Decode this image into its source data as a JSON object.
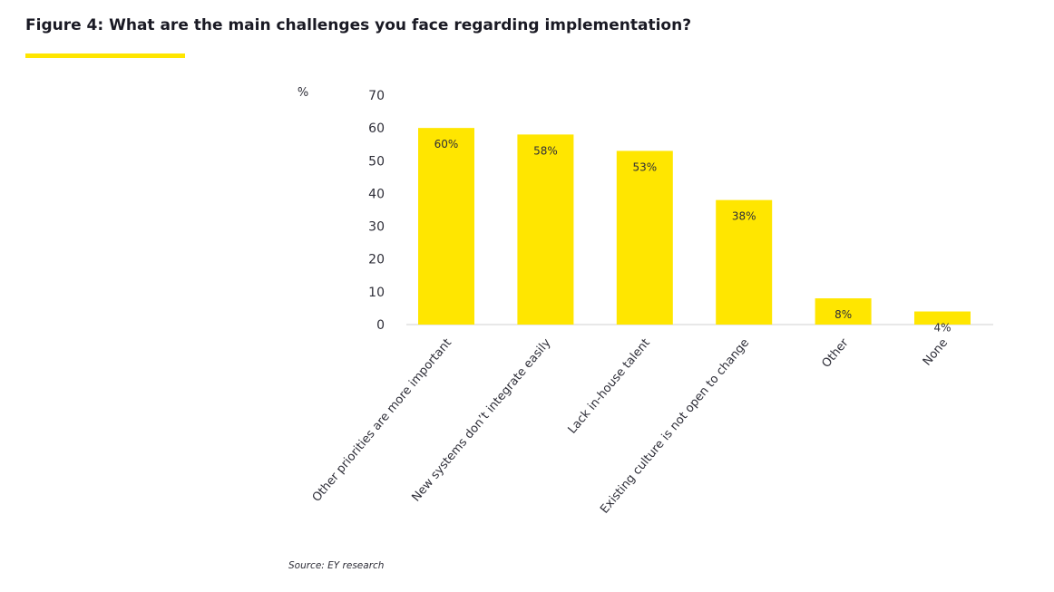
{
  "figure": {
    "title": "Figure 4: What are the main challenges you face regarding implementation?",
    "source": "Source: EY research"
  },
  "colors": {
    "accent": "#ffe600",
    "text": "#2e2e38",
    "axis": "#d0d0d0"
  },
  "chart_data": {
    "type": "bar",
    "title": "What are the main challenges you face regarding implementation?",
    "ylabel": "%",
    "xlabel": "",
    "ylim": [
      0,
      70
    ],
    "yticks": [
      0,
      10,
      20,
      30,
      40,
      50,
      60,
      70
    ],
    "grid": false,
    "categories": [
      "Other priorities are more important",
      "New systems don’t integrate easily",
      "Lack in-house talent",
      "Existing culture is not open to change",
      "Other",
      "None"
    ],
    "values": [
      60,
      58,
      53,
      38,
      8,
      4
    ],
    "data_labels": [
      "60%",
      "58%",
      "53%",
      "38%",
      "8%",
      "4%"
    ]
  }
}
